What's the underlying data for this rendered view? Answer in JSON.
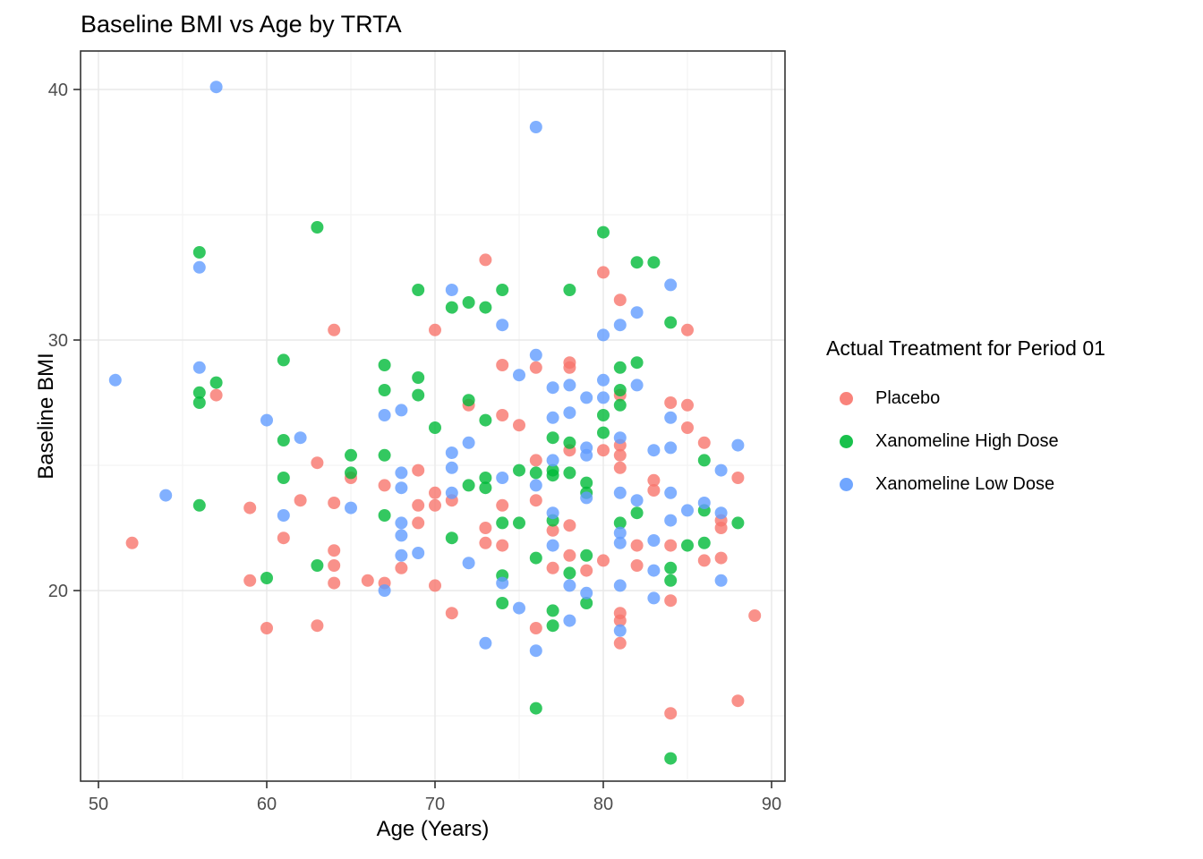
{
  "chart_data": {
    "type": "scatter",
    "title": "Baseline BMI vs Age by TRTA",
    "xlabel": "Age (Years)",
    "ylabel": "Baseline BMI",
    "xlim": [
      48.5,
      90.8
    ],
    "ylim": [
      12.4,
      41.5
    ],
    "xticks": [
      50,
      60,
      70,
      80,
      90
    ],
    "yticks": [
      20,
      30,
      40
    ],
    "x_minor_ticks": [
      55,
      65,
      75,
      85
    ],
    "y_minor_ticks": [
      15,
      25,
      35
    ],
    "grid": true,
    "legend": {
      "title": "Actual Treatment for Period 01",
      "position": "right"
    },
    "series": [
      {
        "name": "Placebo",
        "color": "#F8766D",
        "points": [
          [
            57,
            27.8
          ],
          [
            64,
            30.4
          ],
          [
            70,
            30.4
          ],
          [
            73,
            33.2
          ],
          [
            80,
            32.7
          ],
          [
            74,
            29.0
          ],
          [
            76,
            28.9
          ],
          [
            78,
            29.1
          ],
          [
            78,
            28.9
          ],
          [
            72,
            27.4
          ],
          [
            74,
            27.0
          ],
          [
            81,
            31.6
          ],
          [
            85,
            30.4
          ],
          [
            81,
            27.8
          ],
          [
            84,
            27.5
          ],
          [
            85,
            27.4
          ],
          [
            59,
            23.3
          ],
          [
            52,
            21.9
          ],
          [
            59,
            20.4
          ],
          [
            63,
            25.1
          ],
          [
            65,
            24.5
          ],
          [
            67,
            24.2
          ],
          [
            69,
            24.8
          ],
          [
            70,
            23.9
          ],
          [
            69,
            23.4
          ],
          [
            70,
            23.4
          ],
          [
            62,
            23.6
          ],
          [
            64,
            23.5
          ],
          [
            61,
            22.1
          ],
          [
            64,
            21.6
          ],
          [
            64,
            21.0
          ],
          [
            68,
            20.9
          ],
          [
            64,
            20.3
          ],
          [
            66,
            20.4
          ],
          [
            67,
            20.3
          ],
          [
            70,
            20.2
          ],
          [
            75,
            26.6
          ],
          [
            78,
            25.6
          ],
          [
            80,
            25.6
          ],
          [
            76,
            25.2
          ],
          [
            71,
            23.6
          ],
          [
            74,
            23.4
          ],
          [
            76,
            23.6
          ],
          [
            73,
            22.5
          ],
          [
            77,
            22.4
          ],
          [
            78,
            22.6
          ],
          [
            73,
            21.9
          ],
          [
            74,
            21.8
          ],
          [
            78,
            21.4
          ],
          [
            80,
            21.2
          ],
          [
            77,
            20.9
          ],
          [
            79,
            20.8
          ],
          [
            85,
            26.5
          ],
          [
            81,
            25.8
          ],
          [
            81,
            25.4
          ],
          [
            81,
            24.9
          ],
          [
            86,
            25.9
          ],
          [
            88,
            24.5
          ],
          [
            83,
            24.4
          ],
          [
            83,
            24.0
          ],
          [
            87,
            22.8
          ],
          [
            87,
            22.5
          ],
          [
            82,
            21.8
          ],
          [
            84,
            21.8
          ],
          [
            86,
            21.2
          ],
          [
            87,
            21.3
          ],
          [
            82,
            21.0
          ],
          [
            60,
            18.5
          ],
          [
            63,
            18.6
          ],
          [
            71,
            19.1
          ],
          [
            76,
            18.5
          ],
          [
            84,
            19.6
          ],
          [
            81,
            19.1
          ],
          [
            81,
            18.8
          ],
          [
            81,
            17.9
          ],
          [
            89,
            19.0
          ],
          [
            88,
            15.6
          ],
          [
            84,
            15.1
          ],
          [
            69,
            22.7
          ]
        ]
      },
      {
        "name": "Xanomeline High Dose",
        "color": "#00BA38",
        "points": [
          [
            63,
            34.5
          ],
          [
            80,
            34.3
          ],
          [
            56,
            33.5
          ],
          [
            57,
            28.3
          ],
          [
            56,
            27.9
          ],
          [
            56,
            27.5
          ],
          [
            69,
            32.0
          ],
          [
            61,
            29.2
          ],
          [
            67,
            29.0
          ],
          [
            69,
            28.5
          ],
          [
            67,
            28.0
          ],
          [
            69,
            27.8
          ],
          [
            74,
            32.0
          ],
          [
            78,
            32.0
          ],
          [
            71,
            31.3
          ],
          [
            72,
            31.5
          ],
          [
            73,
            31.3
          ],
          [
            72,
            27.6
          ],
          [
            80,
            27.0
          ],
          [
            73,
            26.8
          ],
          [
            82,
            33.1
          ],
          [
            83,
            33.1
          ],
          [
            84,
            30.7
          ],
          [
            81,
            28.9
          ],
          [
            82,
            29.1
          ],
          [
            81,
            28.0
          ],
          [
            81,
            27.4
          ],
          [
            56,
            23.4
          ],
          [
            61,
            26.0
          ],
          [
            70,
            26.5
          ],
          [
            65,
            25.4
          ],
          [
            67,
            25.4
          ],
          [
            65,
            24.7
          ],
          [
            61,
            24.5
          ],
          [
            67,
            23.0
          ],
          [
            63,
            21.0
          ],
          [
            60,
            20.5
          ],
          [
            77,
            26.1
          ],
          [
            78,
            25.9
          ],
          [
            80,
            26.3
          ],
          [
            75,
            24.8
          ],
          [
            76,
            24.7
          ],
          [
            77,
            24.8
          ],
          [
            77,
            24.6
          ],
          [
            78,
            24.7
          ],
          [
            73,
            24.5
          ],
          [
            73,
            24.1
          ],
          [
            72,
            24.2
          ],
          [
            79,
            24.3
          ],
          [
            79,
            23.9
          ],
          [
            74,
            22.7
          ],
          [
            75,
            22.7
          ],
          [
            77,
            22.8
          ],
          [
            71,
            22.1
          ],
          [
            76,
            21.3
          ],
          [
            79,
            21.4
          ],
          [
            78,
            20.7
          ],
          [
            74,
            20.6
          ],
          [
            86,
            25.2
          ],
          [
            86,
            23.2
          ],
          [
            82,
            23.1
          ],
          [
            81,
            22.7
          ],
          [
            88,
            22.7
          ],
          [
            85,
            21.8
          ],
          [
            86,
            21.9
          ],
          [
            84,
            20.9
          ],
          [
            84,
            20.4
          ],
          [
            74,
            19.5
          ],
          [
            77,
            19.2
          ],
          [
            77,
            18.6
          ],
          [
            79,
            19.5
          ],
          [
            76,
            15.3
          ],
          [
            84,
            13.3
          ]
        ]
      },
      {
        "name": "Xanomeline Low Dose",
        "color": "#619CFF",
        "points": [
          [
            57,
            40.1
          ],
          [
            76,
            38.5
          ],
          [
            56,
            32.9
          ],
          [
            51,
            28.4
          ],
          [
            56,
            28.9
          ],
          [
            68,
            27.2
          ],
          [
            67,
            27.0
          ],
          [
            60,
            26.8
          ],
          [
            71,
            32.0
          ],
          [
            74,
            30.6
          ],
          [
            80,
            30.2
          ],
          [
            76,
            29.4
          ],
          [
            75,
            28.6
          ],
          [
            77,
            28.1
          ],
          [
            78,
            28.2
          ],
          [
            79,
            27.7
          ],
          [
            80,
            28.4
          ],
          [
            80,
            27.7
          ],
          [
            78,
            27.1
          ],
          [
            84,
            32.2
          ],
          [
            82,
            31.1
          ],
          [
            81,
            30.6
          ],
          [
            82,
            28.2
          ],
          [
            84,
            26.9
          ],
          [
            54,
            23.8
          ],
          [
            62,
            26.1
          ],
          [
            68,
            24.7
          ],
          [
            68,
            24.1
          ],
          [
            65,
            23.3
          ],
          [
            61,
            23.0
          ],
          [
            68,
            22.7
          ],
          [
            68,
            22.2
          ],
          [
            69,
            21.5
          ],
          [
            68,
            21.4
          ],
          [
            67,
            20.0
          ],
          [
            77,
            26.9
          ],
          [
            71,
            25.5
          ],
          [
            72,
            25.9
          ],
          [
            71,
            24.9
          ],
          [
            79,
            25.7
          ],
          [
            79,
            25.4
          ],
          [
            77,
            25.2
          ],
          [
            74,
            24.5
          ],
          [
            76,
            24.2
          ],
          [
            79,
            23.7
          ],
          [
            71,
            23.9
          ],
          [
            77,
            23.1
          ],
          [
            77,
            21.8
          ],
          [
            72,
            21.1
          ],
          [
            74,
            20.3
          ],
          [
            78,
            20.2
          ],
          [
            79,
            19.9
          ],
          [
            81,
            26.1
          ],
          [
            83,
            25.6
          ],
          [
            84,
            25.7
          ],
          [
            88,
            25.8
          ],
          [
            87,
            24.8
          ],
          [
            81,
            23.9
          ],
          [
            84,
            23.9
          ],
          [
            82,
            23.6
          ],
          [
            86,
            23.5
          ],
          [
            85,
            23.2
          ],
          [
            87,
            23.1
          ],
          [
            84,
            22.8
          ],
          [
            81,
            22.3
          ],
          [
            81,
            21.9
          ],
          [
            83,
            22.0
          ],
          [
            83,
            20.8
          ],
          [
            87,
            20.4
          ],
          [
            81,
            20.2
          ],
          [
            75,
            19.3
          ],
          [
            78,
            18.8
          ],
          [
            73,
            17.9
          ],
          [
            76,
            17.6
          ],
          [
            83,
            19.7
          ],
          [
            81,
            18.4
          ]
        ]
      }
    ],
    "style": {
      "point_radius": 7,
      "point_opacity": 0.8,
      "panel_border_color": "#333333",
      "major_grid_color": "#e8e8e8",
      "minor_grid_color": "#f2f2f2",
      "tick_label_color": "#4d4d4d"
    }
  }
}
